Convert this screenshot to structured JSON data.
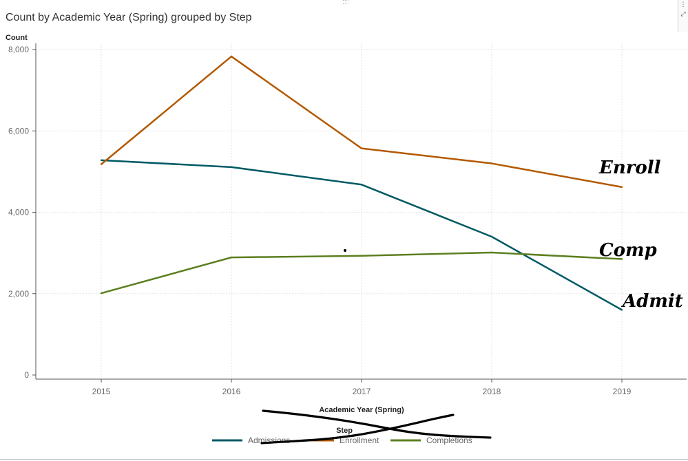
{
  "title": "Count by Academic Year (Spring) grouped by Step",
  "colors": {
    "Admissions": "#005a64",
    "Enrollment": "#b35900",
    "Completions": "#5b7f1f",
    "grid": "#e3e3e3",
    "axis": "#555555"
  },
  "toolbar": {
    "menu_icon": "menu-icon",
    "expand_icon": "expand-icon"
  },
  "chart_data": {
    "type": "line",
    "title": "Count by Academic Year (Spring) grouped by Step",
    "xlabel": "Academic Year (Spring)",
    "ylabel": "Count",
    "x": [
      "2015",
      "2016",
      "2017",
      "2018",
      "2019"
    ],
    "yticks": [
      "0",
      "2,000",
      "4,000",
      "6,000",
      "8,000"
    ],
    "ylim": [
      0,
      8000
    ],
    "grid": true,
    "legend_title": "Step",
    "legend_position": "bottom",
    "series": [
      {
        "name": "Admissions",
        "values": [
          5280,
          5110,
          4680,
          3400,
          1600
        ]
      },
      {
        "name": "Enrollment",
        "values": [
          5180,
          7830,
          5570,
          5200,
          4620
        ]
      },
      {
        "name": "Completions",
        "values": [
          2010,
          2890,
          2930,
          3010,
          2850
        ]
      }
    ],
    "annotations": [
      "Enroll",
      "Comp",
      "Admit"
    ]
  }
}
